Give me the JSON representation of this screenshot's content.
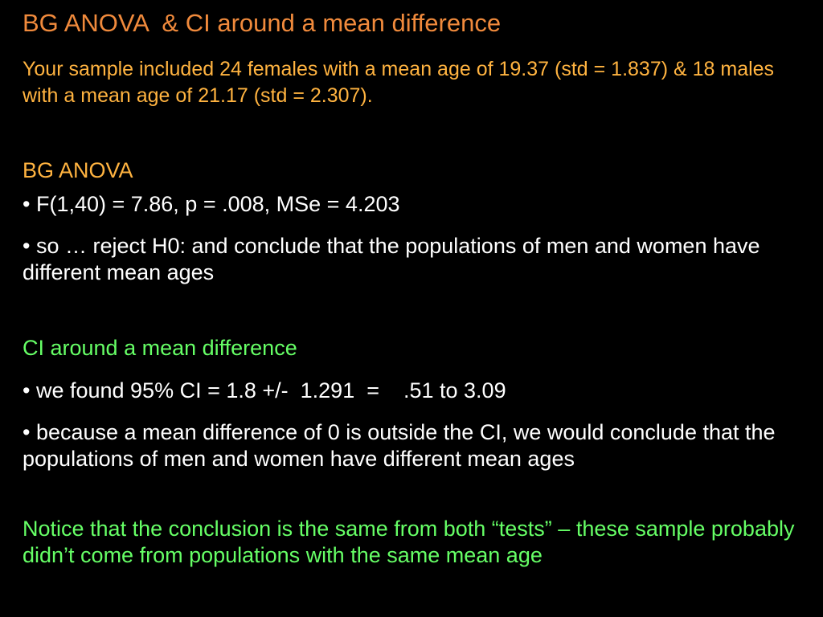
{
  "colors": {
    "background": "#000000",
    "title": "#f08a3c",
    "intro": "#ffb340",
    "section_anova": "#ffb340",
    "section_ci": "#66ff66",
    "body_text": "#ffffff",
    "notice": "#66ff66"
  },
  "slide": {
    "title": "BG ANOVA  & CI around a mean difference",
    "intro": "Your sample included 24 females with a mean age of 19.37 (std = 1.837) & 18 males with a mean age of 21.17 (std = 2.307).",
    "anova": {
      "heading": "BG ANOVA",
      "bullets": [
        "• F(1,40) = 7.86, p = .008, MSe = 4.203",
        "• so … reject H0: and conclude that the populations of men and women have different mean ages"
      ]
    },
    "ci": {
      "heading": "CI around a mean difference",
      "bullets": [
        "• we found 95% CI = 1.8 +/-  1.291  =    .51 to 3.09",
        "• because a mean difference of 0 is outside the CI, we would conclude that the populations of men and women have different mean ages"
      ]
    },
    "notice": "Notice that the conclusion is the same from both “tests” – these sample probably didn’t come from populations with the same mean age"
  }
}
